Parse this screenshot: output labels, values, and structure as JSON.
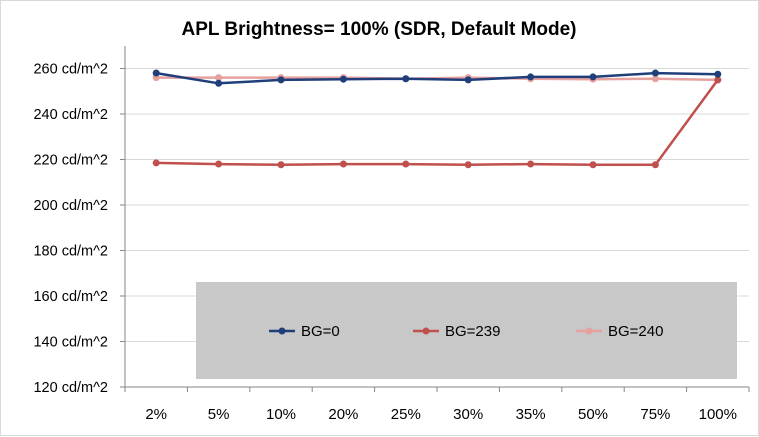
{
  "chart_data": {
    "type": "line",
    "title": "APL Brightness= 100% (SDR, Default Mode)",
    "xlabel": "",
    "ylabel": "",
    "categories": [
      "2%",
      "5%",
      "10%",
      "20%",
      "25%",
      "30%",
      "35%",
      "50%",
      "75%",
      "100%"
    ],
    "ylim": [
      120,
      265
    ],
    "yticks": [
      {
        "value": 120,
        "label": "120 cd/m^2"
      },
      {
        "value": 140,
        "label": "140 cd/m^2"
      },
      {
        "value": 160,
        "label": "160 cd/m^2"
      },
      {
        "value": 180,
        "label": "180 cd/m^2"
      },
      {
        "value": 200,
        "label": "200 cd/m^2"
      },
      {
        "value": 220,
        "label": "220 cd/m^2"
      },
      {
        "value": 240,
        "label": "240 cd/m^2"
      },
      {
        "value": 260,
        "label": "260 cd/m^2"
      }
    ],
    "grid": "horizontal",
    "legend_position": "bottom-center",
    "series": [
      {
        "name": "BG=0",
        "color": "#1f3e7a",
        "values": [
          258,
          253.5,
          255,
          255.3,
          255.5,
          255,
          256.3,
          256.3,
          258,
          257.5
        ]
      },
      {
        "name": "BG=239",
        "color": "#c0504d",
        "values": [
          218.5,
          218,
          217.7,
          218,
          218,
          217.7,
          218,
          217.7,
          217.7,
          255
        ]
      },
      {
        "name": "BG=240",
        "color": "#e6a09e",
        "values": [
          256,
          256,
          256,
          256,
          255.5,
          256,
          255.5,
          255.3,
          255.5,
          255
        ]
      }
    ],
    "colors": {
      "legend_background": "#c8c8c8",
      "grid": "#d9d9d9"
    }
  }
}
